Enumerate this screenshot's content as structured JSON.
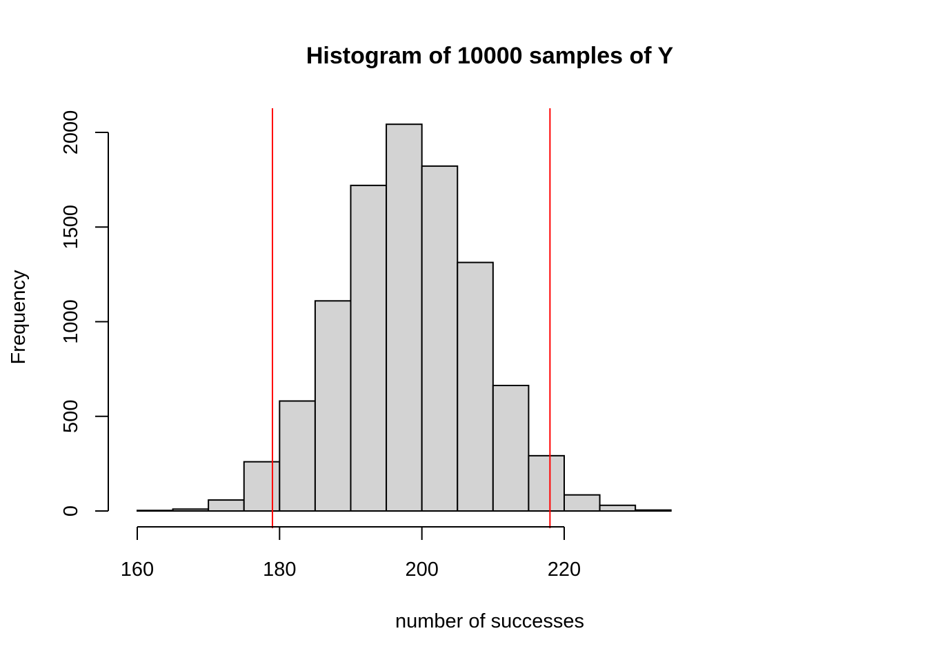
{
  "chart_data": {
    "type": "bar",
    "title": "Histogram of 10000 samples of Y",
    "xlabel": "number of successes",
    "ylabel": "Frequency",
    "bin_edges": [
      160,
      165,
      170,
      175,
      180,
      185,
      190,
      195,
      200,
      205,
      210,
      215,
      220,
      225,
      230,
      235
    ],
    "values": [
      3,
      10,
      58,
      260,
      581,
      1110,
      1720,
      2043,
      1822,
      1313,
      663,
      292,
      85,
      30,
      5
    ],
    "xlim": [
      160,
      235
    ],
    "ylim": [
      0,
      2000
    ],
    "xticks": [
      160,
      180,
      200,
      220
    ],
    "yticks": [
      0,
      500,
      1000,
      1500,
      2000
    ],
    "vlines": [
      179,
      218
    ],
    "bar_color": "#d3d3d3",
    "vline_color": "#ff0000",
    "grid": false,
    "legend": "none"
  }
}
